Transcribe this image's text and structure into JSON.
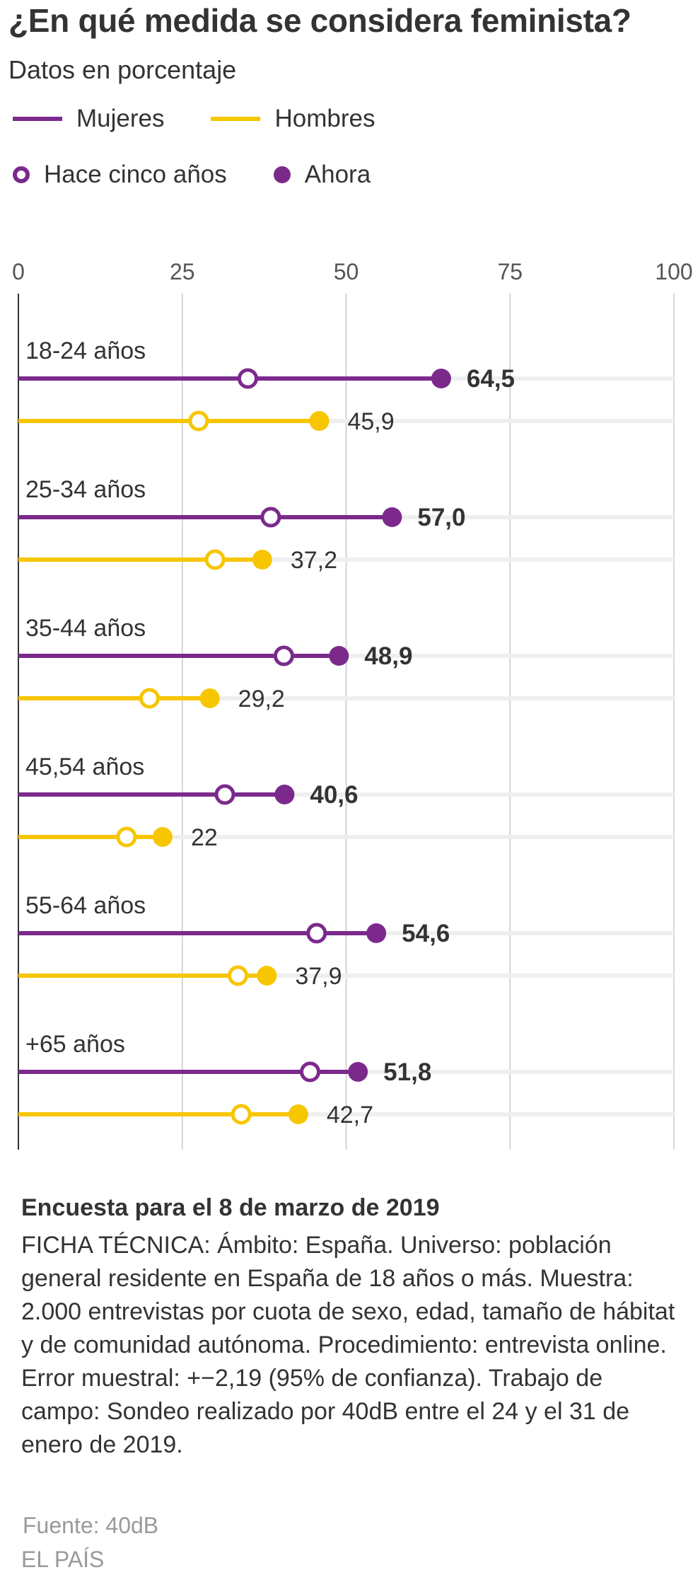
{
  "title": "¿En qué medida se considera feminista?",
  "subtitle": "Datos en porcentaje",
  "legend": {
    "series": [
      {
        "label": "Mujeres",
        "color": "#7b2a8c"
      },
      {
        "label": "Hombres",
        "color": "#f7c600"
      }
    ],
    "markers": [
      {
        "label": "Hace cinco años",
        "style": "open"
      },
      {
        "label": "Ahora",
        "style": "filled"
      }
    ]
  },
  "chart_data": {
    "type": "dumbbell",
    "title": "¿En qué medida se considera feminista?",
    "subtitle": "Datos en porcentaje",
    "xlim": [
      0,
      100
    ],
    "x_ticks": [
      {
        "value": 0,
        "label": "0"
      },
      {
        "value": 25,
        "label": "25"
      },
      {
        "value": 50,
        "label": "50"
      },
      {
        "value": 75,
        "label": "75"
      },
      {
        "value": 100,
        "label": "100"
      }
    ],
    "grid": true,
    "colors": {
      "Mujeres": "#7b2a8c",
      "Hombres": "#f7c600"
    },
    "groups": [
      {
        "label": "18-24 años",
        "Mujeres": {
          "before": 35,
          "now": 64.5,
          "label": "64,5"
        },
        "Hombres": {
          "before": 27.5,
          "now": 45.9,
          "label": "45,9"
        }
      },
      {
        "label": "25-34 años",
        "Mujeres": {
          "before": 38.5,
          "now": 57.0,
          "label": "57,0"
        },
        "Hombres": {
          "before": 30,
          "now": 37.2,
          "label": "37,2"
        }
      },
      {
        "label": "35-44 años",
        "Mujeres": {
          "before": 40.5,
          "now": 48.9,
          "label": "48,9"
        },
        "Hombres": {
          "before": 20,
          "now": 29.2,
          "label": "29,2"
        }
      },
      {
        "label": "45,54 años",
        "Mujeres": {
          "before": 31.5,
          "now": 40.6,
          "label": "40,6"
        },
        "Hombres": {
          "before": 16.5,
          "now": 22,
          "label": "22"
        }
      },
      {
        "label": "55-64 años",
        "Mujeres": {
          "before": 45.5,
          "now": 54.6,
          "label": "54,6"
        },
        "Hombres": {
          "before": 33.5,
          "now": 37.9,
          "label": "37,9"
        }
      },
      {
        "label": "+65 años",
        "Mujeres": {
          "before": 44.5,
          "now": 51.8,
          "label": "51,8"
        },
        "Hombres": {
          "before": 34,
          "now": 42.7,
          "label": "42,7"
        }
      }
    ]
  },
  "footer": {
    "heading": "Encuesta para el 8 de marzo de 2019",
    "body": "FICHA TÉCNICA: Ámbito: España. Universo: población general residente en España de 18 años o más. Muestra: 2.000 entrevistas por cuota de sexo, edad, tamaño de hábitat y de comunidad autónoma. Procedimiento: entrevista online. Error muestral: +−2,19 (95% de confianza). Trabajo de campo: Sondeo realizado por 40dB entre el 24 y el 31 de enero de 2019.",
    "source": "Fuente: 40dB",
    "brand": "EL PAÍS"
  }
}
